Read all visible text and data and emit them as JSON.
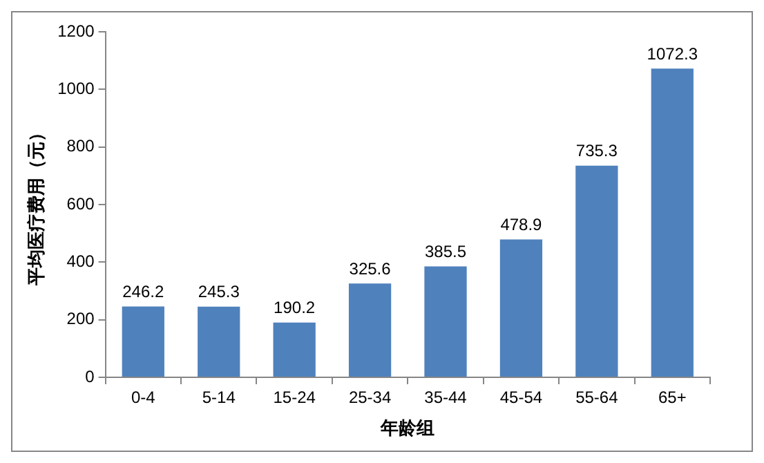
{
  "chart_data": {
    "type": "bar",
    "xlabel": "年龄组",
    "ylabel": "平均医疗费用（元）",
    "categories": [
      "0-4",
      "5-14",
      "15-24",
      "25-34",
      "35-44",
      "45-54",
      "55-64",
      "65+"
    ],
    "values": [
      246.2,
      245.3,
      190.2,
      325.6,
      385.5,
      478.9,
      735.3,
      1072.3
    ],
    "color": "#4f81bd",
    "ylim": [
      0,
      1200
    ],
    "yticks": [
      0,
      200,
      400,
      600,
      800,
      1000,
      1200
    ],
    "grid": false,
    "legend": false,
    "data_labels": true
  }
}
